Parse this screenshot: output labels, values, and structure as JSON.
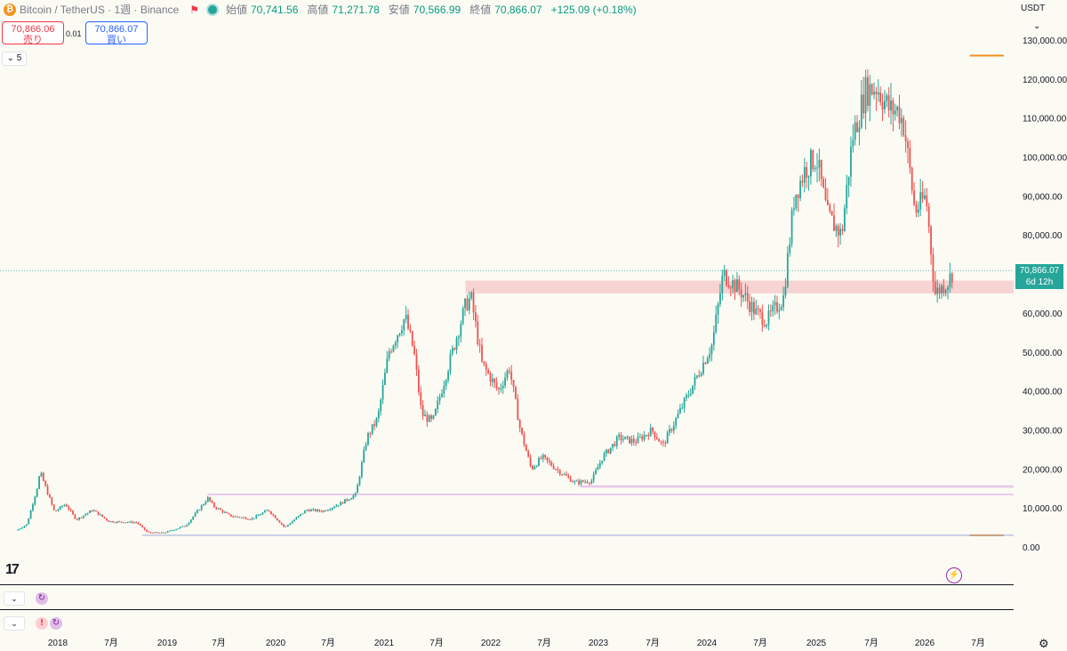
{
  "header": {
    "coin_icon": "bitcoin-icon",
    "symbol": "Bitcoin / TetherUS · 1週 · Binance",
    "open_label": "始値",
    "open": "70,741.56",
    "high_label": "高値",
    "high": "71,271.78",
    "low_label": "安値",
    "low": "70,566.99",
    "close_label": "終値",
    "close": "70,866.07",
    "change": "+125.09 (+0.18%)"
  },
  "trade": {
    "sell_price": "70,866.06",
    "sell_label": "売り",
    "spread": "0.01",
    "buy_price": "70,866.07",
    "buy_label": "買い"
  },
  "collapse_label": "5",
  "currency": "USDT",
  "price_tag": {
    "price": "70,866.07",
    "countdown": "6d 12h"
  },
  "colors": {
    "up": "#26a69a",
    "down": "#ef5350",
    "zone_red": "#f8d3d3",
    "zone_purple": "#e9c8ec",
    "level_orange": "#f0901e",
    "level_blue": "#9fa8da"
  },
  "chart_data": {
    "type": "candlestick",
    "y_ticks": [
      "130,000.00",
      "120,000.00",
      "110,000.00",
      "100,000.00",
      "90,000.00",
      "80,000.00",
      "70,000.00",
      "60,000.00",
      "50,000.00",
      "40,000.00",
      "30,000.00",
      "20,000.00",
      "10,000.00",
      "0.00"
    ],
    "ylim": [
      0,
      130000
    ],
    "x_ticks": [
      "2018",
      "7月",
      "2019",
      "7月",
      "2020",
      "7月",
      "2021",
      "7月",
      "2022",
      "7月",
      "2023",
      "7月",
      "2024",
      "7月",
      "2025",
      "7月",
      "2026",
      "7月"
    ],
    "xlim": [
      2017.75,
      2026.85
    ],
    "current_price": 70866.07,
    "path": [
      [
        2017.75,
        4200
      ],
      [
        2017.85,
        5800
      ],
      [
        2017.95,
        16000
      ],
      [
        2017.97,
        19200
      ],
      [
        2018.1,
        9000
      ],
      [
        2018.2,
        11000
      ],
      [
        2018.3,
        7000
      ],
      [
        2018.45,
        9500
      ],
      [
        2018.6,
        6500
      ],
      [
        2018.85,
        6300
      ],
      [
        2018.95,
        3700
      ],
      [
        2019.1,
        3600
      ],
      [
        2019.3,
        5500
      ],
      [
        2019.5,
        12500
      ],
      [
        2019.55,
        10500
      ],
      [
        2019.7,
        8000
      ],
      [
        2019.9,
        7200
      ],
      [
        2020.05,
        9500
      ],
      [
        2020.2,
        5000
      ],
      [
        2020.4,
        9500
      ],
      [
        2020.55,
        9200
      ],
      [
        2020.7,
        11000
      ],
      [
        2020.85,
        13500
      ],
      [
        2020.95,
        28000
      ],
      [
        2021.05,
        33000
      ],
      [
        2021.15,
        50000
      ],
      [
        2021.3,
        59000
      ],
      [
        2021.38,
        50000
      ],
      [
        2021.45,
        34000
      ],
      [
        2021.55,
        32000
      ],
      [
        2021.7,
        47000
      ],
      [
        2021.85,
        62000
      ],
      [
        2021.9,
        64000
      ],
      [
        2022.0,
        47000
      ],
      [
        2022.15,
        40000
      ],
      [
        2022.25,
        46000
      ],
      [
        2022.35,
        30000
      ],
      [
        2022.45,
        20000
      ],
      [
        2022.55,
        23000
      ],
      [
        2022.7,
        19500
      ],
      [
        2022.85,
        16500
      ],
      [
        2023.0,
        17000
      ],
      [
        2023.1,
        23000
      ],
      [
        2023.25,
        28000
      ],
      [
        2023.4,
        27000
      ],
      [
        2023.55,
        30000
      ],
      [
        2023.65,
        26000
      ],
      [
        2023.8,
        34500
      ],
      [
        2023.95,
        43000
      ],
      [
        2024.1,
        52000
      ],
      [
        2024.2,
        70000
      ],
      [
        2024.35,
        66000
      ],
      [
        2024.5,
        60000
      ],
      [
        2024.6,
        58000
      ],
      [
        2024.75,
        64000
      ],
      [
        2024.85,
        90000
      ],
      [
        2024.95,
        97000
      ],
      [
        2025.05,
        100000
      ],
      [
        2025.15,
        85000
      ],
      [
        2025.28,
        80000
      ],
      [
        2025.38,
        105000
      ],
      [
        2025.5,
        117000
      ],
      [
        2025.6,
        118000
      ],
      [
        2025.72,
        112000
      ],
      [
        2025.8,
        112000
      ],
      [
        2025.85,
        108000
      ],
      [
        2025.95,
        86000
      ],
      [
        2026.05,
        90000
      ],
      [
        2026.1,
        75000
      ],
      [
        2026.13,
        65000
      ],
      [
        2026.25,
        68000
      ],
      [
        2026.3,
        70866
      ]
    ],
    "zones": [
      {
        "from": 65000,
        "to": 68300,
        "x_start": 2021.85,
        "color": "red"
      },
      {
        "from": 15200,
        "to": 15800,
        "x_start": 2022.9,
        "color": "purple"
      },
      {
        "from": 13300,
        "to": 13700,
        "x_start": 2019.5,
        "color": "purple"
      }
    ],
    "levels": [
      {
        "price": 126000,
        "x_start": 2026.3,
        "color": "orange"
      },
      {
        "price": 3000,
        "x_start": 2026.3,
        "color": "orange"
      },
      {
        "price": 3000,
        "x_start": 2018.9,
        "x_end": 2026.85,
        "color": "blue"
      }
    ]
  },
  "footer": {
    "logo": "17",
    "bolt_icon": "lightning-icon",
    "sync_icon": "sync-icon",
    "warn_icon": "warning-icon",
    "settings_icon": "settings-icon"
  }
}
